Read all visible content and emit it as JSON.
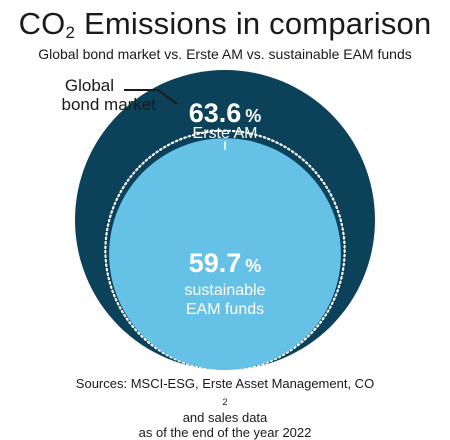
{
  "header": {
    "title_main": "CO",
    "title_sub": "2",
    "title_rest": " Emissions in comparison",
    "subtitle": "Global bond market vs. Erste AM vs. sustainable EAM funds"
  },
  "chart_data": {
    "type": "nested-circles",
    "series": [
      {
        "name_line1": "Global",
        "name_line2": "bond market",
        "value": 100,
        "color": "#0b4159"
      },
      {
        "name": "Erste AM",
        "value": 63.6,
        "unit": "%",
        "color": "#ffffff"
      },
      {
        "name_line1": "sustainable",
        "name_line2": "EAM funds",
        "value": 59.7,
        "unit": "%",
        "color": "#66c1e7"
      }
    ]
  },
  "footer": {
    "source_line1_a": "Sources: MSCI-ESG, Erste Asset Management, CO",
    "source_line1_sub": "2",
    "source_line1_b": " and sales data",
    "source_line2": "as of the end of the year 2022"
  }
}
